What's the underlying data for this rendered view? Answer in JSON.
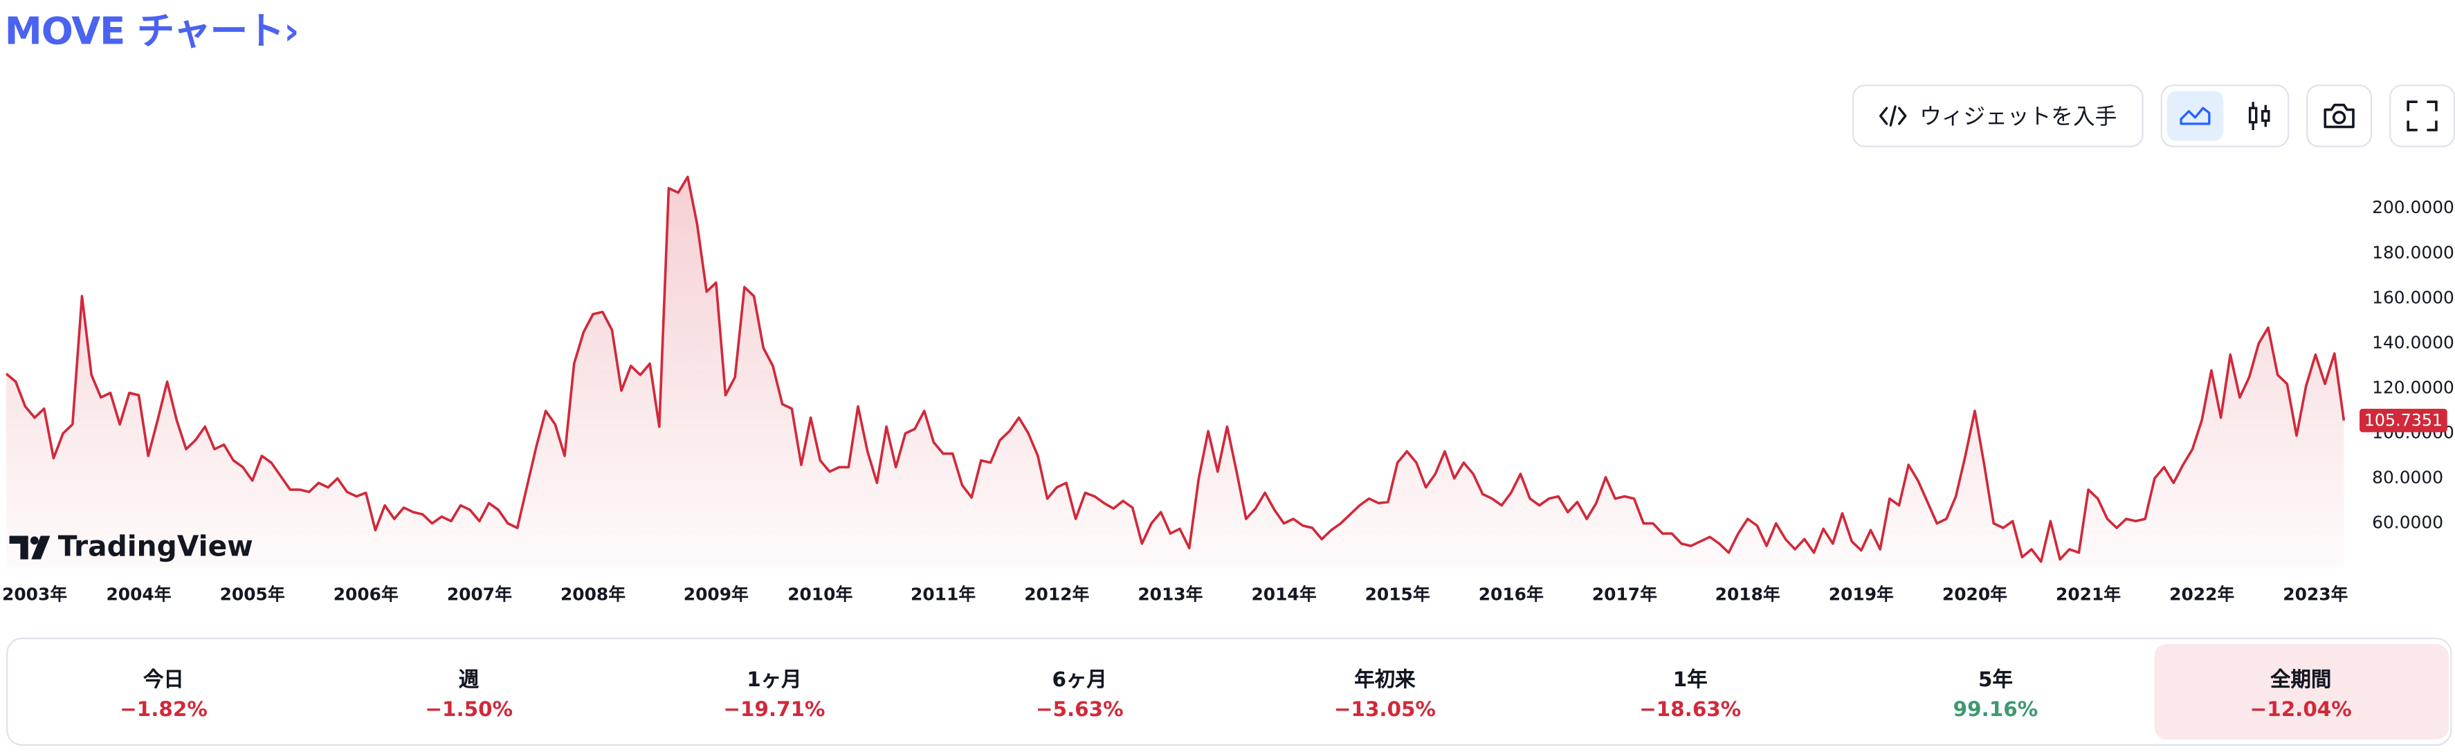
{
  "header": {
    "title": "MOVE チャート›"
  },
  "toolbar": {
    "widget_button": "ウィジェットを入手"
  },
  "branding": "TradingView",
  "chart_data": {
    "type": "line",
    "color": "#d1293a",
    "categories": [
      null,
      null,
      null,
      "2003年",
      null,
      null,
      null,
      null,
      null,
      null,
      null,
      null,
      null,
      null,
      "2004年",
      null,
      null,
      null,
      null,
      null,
      null,
      null,
      null,
      null,
      null,
      null,
      "2005年",
      null,
      null,
      null,
      null,
      null,
      null,
      null,
      null,
      null,
      null,
      null,
      "2006年",
      null,
      null,
      null,
      null,
      null,
      null,
      null,
      null,
      null,
      null,
      null,
      "2007年",
      null,
      null,
      null,
      null,
      null,
      null,
      null,
      null,
      null,
      null,
      null,
      "2008年",
      null,
      null,
      null,
      null,
      null,
      null,
      null,
      null,
      null,
      null,
      null,
      null,
      "2009年",
      null,
      null,
      null,
      null,
      null,
      null,
      null,
      null,
      null,
      null,
      "2010年",
      null,
      null,
      null,
      null,
      null,
      null,
      null,
      null,
      null,
      null,
      null,
      null,
      "2011年",
      null,
      null,
      null,
      null,
      null,
      null,
      null,
      null,
      null,
      null,
      null,
      "2012年",
      null,
      null,
      null,
      null,
      null,
      null,
      null,
      null,
      null,
      null,
      null,
      "2013年",
      null,
      null,
      null,
      null,
      null,
      null,
      null,
      null,
      null,
      null,
      null,
      "2014年",
      null,
      null,
      null,
      null,
      null,
      null,
      null,
      null,
      null,
      null,
      null,
      "2015年",
      null,
      null,
      null,
      null,
      null,
      null,
      null,
      null,
      null,
      null,
      null,
      "2016年",
      null,
      null,
      null,
      null,
      null,
      null,
      null,
      null,
      null,
      null,
      null,
      "2017年",
      null,
      null,
      null,
      null,
      null,
      null,
      null,
      null,
      null,
      null,
      null,
      null,
      "2018年",
      null,
      null,
      null,
      null,
      null,
      null,
      null,
      null,
      null,
      null,
      null,
      "2019年",
      null,
      null,
      null,
      null,
      null,
      null,
      null,
      null,
      null,
      null,
      null,
      "2020年",
      null,
      null,
      null,
      null,
      null,
      null,
      null,
      null,
      null,
      null,
      null,
      "2021年",
      null,
      null,
      null,
      null,
      null,
      null,
      null,
      null,
      null,
      null,
      null,
      "2022年",
      null,
      null,
      null,
      null,
      null,
      null,
      null,
      null,
      null,
      null,
      null,
      "2023年",
      null,
      null,
      null
    ],
    "values": [
      126.5,
      123,
      112,
      107,
      111,
      89,
      100,
      104,
      161,
      126,
      116,
      118,
      104,
      118,
      117,
      90,
      106,
      123,
      106,
      93,
      97,
      103,
      93,
      95,
      88,
      85,
      79,
      90,
      87,
      81,
      75,
      75,
      74,
      78,
      76,
      80,
      74,
      72,
      73.6,
      57,
      68,
      62,
      67,
      65,
      64,
      60,
      63,
      61,
      68,
      66,
      61,
      69,
      66,
      60,
      58,
      76,
      94,
      110,
      104,
      90,
      131,
      145,
      153,
      154,
      146,
      119,
      130,
      126,
      131,
      103,
      209,
      207,
      214,
      193,
      163,
      167,
      117,
      125,
      165,
      161,
      138,
      130,
      113,
      111,
      86,
      107,
      88,
      83,
      85,
      85,
      112,
      92,
      78,
      103,
      85,
      100,
      102,
      110,
      96,
      91,
      91,
      77,
      71.5,
      88,
      87,
      97,
      101,
      107,
      100,
      90,
      71,
      76,
      78,
      62,
      73.6,
      72,
      69,
      66.6,
      70,
      67,
      51,
      60,
      65,
      55.5,
      57.6,
      49,
      80,
      101,
      83,
      103,
      83,
      62,
      66.6,
      73.6,
      66,
      60,
      62,
      59,
      58,
      53,
      57,
      60,
      64,
      68,
      71,
      69,
      69.5,
      87,
      92,
      87,
      76,
      82,
      92,
      80,
      87,
      82,
      73,
      71,
      68,
      73.6,
      82,
      71,
      68,
      71,
      72,
      65,
      69.5,
      62,
      69,
      80.5,
      71,
      72,
      71,
      60,
      60,
      55.5,
      55.5,
      51,
      50,
      52,
      54,
      51,
      47,
      55.5,
      62,
      59,
      50,
      60,
      53,
      48.5,
      53,
      47,
      57.6,
      51,
      64.5,
      52,
      48,
      57,
      48.5,
      71,
      68,
      86,
      79,
      69.5,
      60,
      62,
      72,
      90,
      110,
      86,
      60,
      58,
      61,
      45,
      48.5,
      43,
      61,
      44,
      48.5,
      47,
      75,
      71,
      62,
      58,
      62,
      61,
      62,
      80,
      85,
      78,
      86,
      93,
      106,
      128,
      107,
      135,
      116,
      125,
      140,
      147,
      126,
      122,
      99,
      121,
      135,
      122,
      135.5,
      105.7351
    ],
    "ylim": [
      40,
      223
    ],
    "yticks": [
      {
        "value": 60,
        "label": "60.0000"
      },
      {
        "value": 80,
        "label": "80.0000"
      },
      {
        "value": 100,
        "label": "100.0000"
      },
      {
        "value": 120,
        "label": "120.0000"
      },
      {
        "value": 140,
        "label": "140.0000"
      },
      {
        "value": 160,
        "label": "160.0000"
      },
      {
        "value": 180,
        "label": "180.0000"
      },
      {
        "value": 200,
        "label": "200.0000"
      }
    ],
    "grid": false,
    "area": true
  },
  "performance": {
    "selected_index": 7,
    "items": [
      {
        "label": "今日",
        "change": "−1.82%"
      },
      {
        "label": "週",
        "change": "−1.50%"
      },
      {
        "label": "1ヶ月",
        "change": "−19.71%"
      },
      {
        "label": "6ヶ月",
        "change": "−5.63%"
      },
      {
        "label": "年初来",
        "change": "−13.05%"
      },
      {
        "label": "1年",
        "change": "−18.63%"
      },
      {
        "label": "5年",
        "change": "99.16%"
      },
      {
        "label": "全期間",
        "change": "−12.04%"
      }
    ]
  }
}
